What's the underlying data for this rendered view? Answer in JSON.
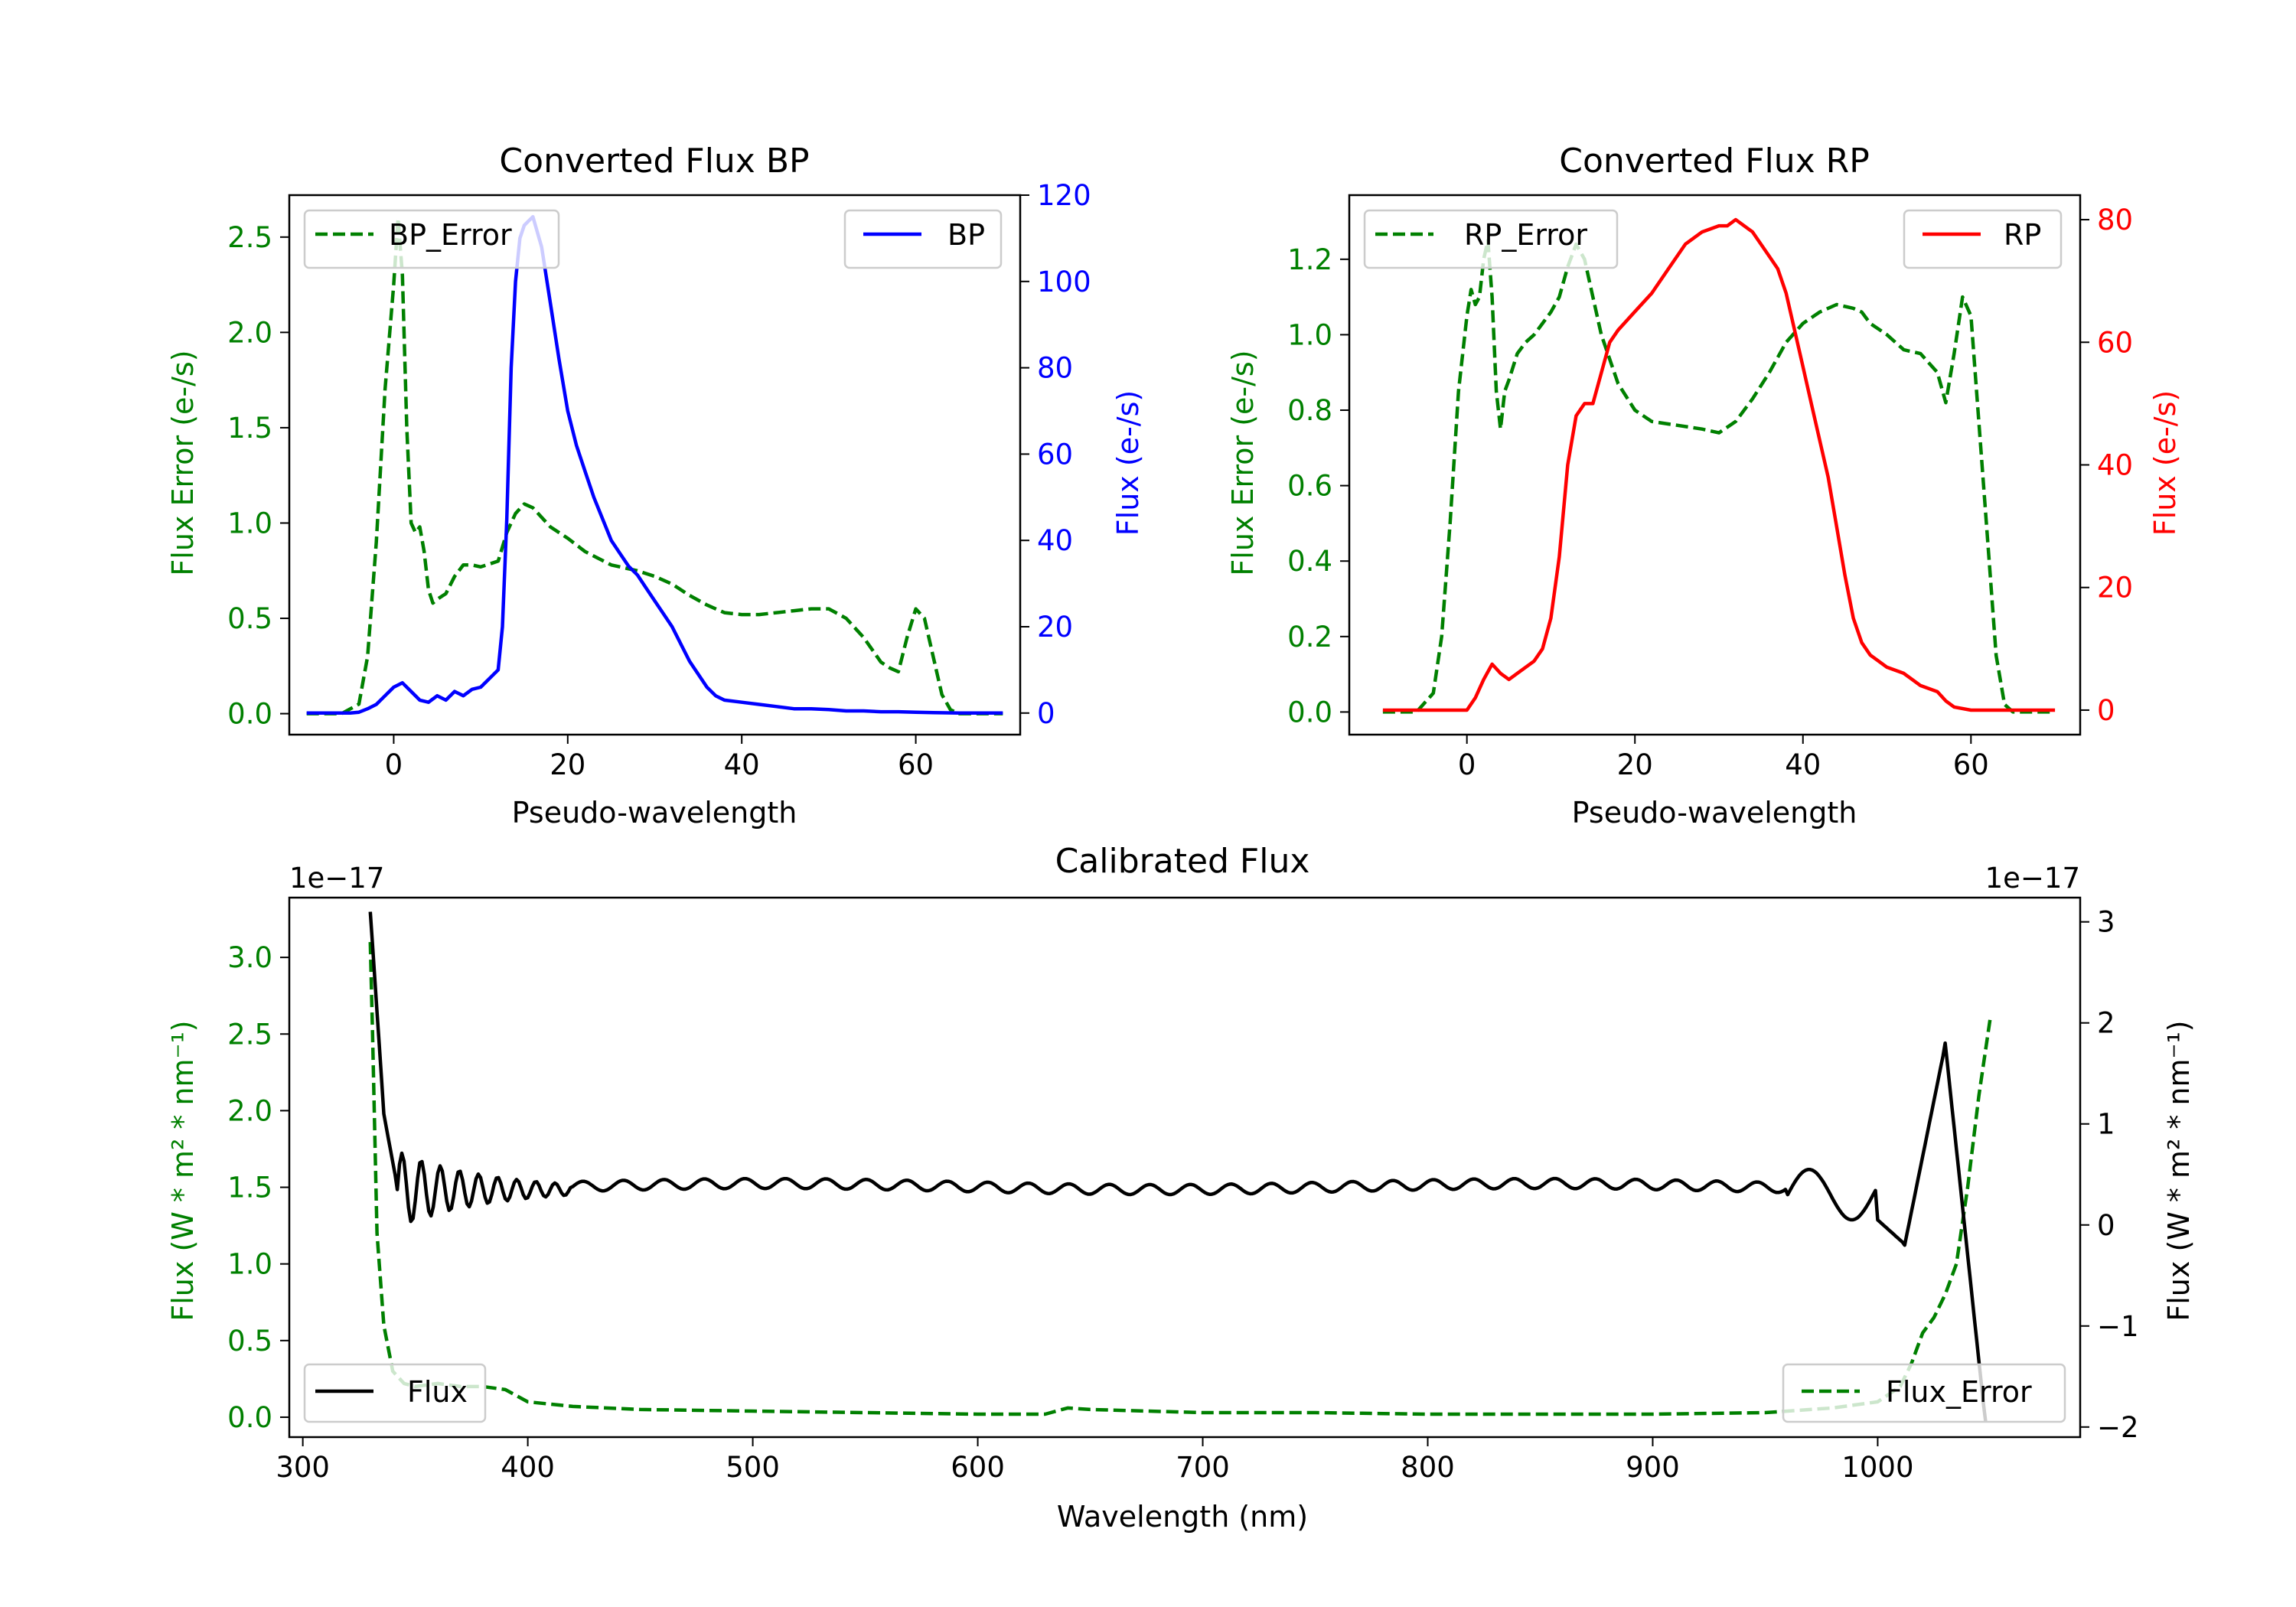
{
  "colors": {
    "green": "#008000",
    "blue": "#0000ff",
    "red": "#ff0000",
    "black": "#000000"
  },
  "chart_data": [
    {
      "id": "bp",
      "type": "line",
      "title": "Converted Flux BP",
      "xlabel": "Pseudo-wavelength",
      "ylabel_left": "Flux Error (e-/s)",
      "ylabel_right": "Flux (e-/s)",
      "xlim": [
        -12,
        72
      ],
      "ylim_left": [
        -0.11,
        2.72
      ],
      "ylim_right": [
        -5,
        120
      ],
      "xticks": [
        0,
        20,
        40,
        60
      ],
      "xtick_labels": [
        "0",
        "20",
        "40",
        "60"
      ],
      "yticks_left": [
        0,
        0.5,
        1,
        1.5,
        2,
        2.5
      ],
      "yticks_left_labels": [
        "0.0",
        "0.5",
        "1.0",
        "1.5",
        "2.0",
        "2.5"
      ],
      "yticks_right": [
        0,
        20,
        40,
        60,
        80,
        100,
        120
      ],
      "yticks_right_labels": [
        "0",
        "20",
        "40",
        "60",
        "80",
        "100",
        "120"
      ],
      "legend_left": {
        "label": "BP_Error",
        "position": "upper-left"
      },
      "legend_right": {
        "label": "BP",
        "position": "upper-right"
      },
      "series": [
        {
          "name": "BP_Error",
          "axis": "left",
          "style": "dashed",
          "color": "#008000",
          "x": [
            -10,
            -6,
            -4,
            -3,
            -2,
            -1,
            0,
            0.5,
            1,
            1.5,
            2,
            2.5,
            3,
            3.5,
            4,
            4.5,
            5,
            6,
            7,
            8,
            9,
            10,
            12,
            13,
            14,
            15,
            16,
            18,
            20,
            22,
            25,
            28,
            30,
            32,
            34,
            36,
            38,
            40,
            42,
            44,
            46,
            48,
            50,
            52,
            54,
            56,
            57,
            58,
            59,
            60,
            61,
            62,
            63,
            64,
            65,
            70
          ],
          "y": [
            0,
            0,
            0.05,
            0.3,
            0.9,
            1.7,
            2.25,
            2.6,
            2.3,
            1.5,
            1.0,
            0.95,
            0.98,
            0.85,
            0.65,
            0.58,
            0.6,
            0.63,
            0.72,
            0.78,
            0.78,
            0.77,
            0.8,
            0.95,
            1.05,
            1.1,
            1.08,
            0.98,
            0.92,
            0.85,
            0.78,
            0.75,
            0.72,
            0.68,
            0.62,
            0.57,
            0.53,
            0.52,
            0.52,
            0.53,
            0.54,
            0.55,
            0.55,
            0.5,
            0.4,
            0.27,
            0.24,
            0.22,
            0.4,
            0.55,
            0.5,
            0.3,
            0.1,
            0.02,
            0,
            0
          ]
        },
        {
          "name": "BP",
          "axis": "right",
          "style": "solid",
          "color": "#0000ff",
          "x": [
            -10,
            -6,
            -5,
            -4,
            -3,
            -2,
            -1,
            0,
            1,
            2,
            3,
            4,
            5,
            6,
            7,
            8,
            9,
            10,
            11,
            12,
            12.5,
            13,
            13.5,
            14,
            14.5,
            15,
            15.5,
            16,
            17,
            18,
            19,
            20,
            21,
            22,
            23,
            24,
            25,
            26,
            27,
            28,
            29,
            30,
            31,
            32,
            33,
            34,
            35,
            36,
            37,
            38,
            40,
            42,
            44,
            46,
            48,
            50,
            52,
            54,
            56,
            58,
            60,
            62,
            65,
            70
          ],
          "y": [
            0,
            0,
            0,
            0.2,
            1,
            2,
            4,
            6,
            7,
            5,
            3,
            2.5,
            4,
            3,
            5,
            4,
            5.5,
            6,
            8,
            10,
            20,
            45,
            80,
            100,
            110,
            113,
            114,
            115,
            108,
            95,
            82,
            70,
            62,
            56,
            50,
            45,
            40,
            37,
            34,
            32,
            29,
            26,
            23,
            20,
            16,
            12,
            9,
            6,
            4,
            3,
            2.5,
            2,
            1.5,
            1,
            1,
            0.8,
            0.5,
            0.5,
            0.3,
            0.3,
            0.2,
            0.1,
            0,
            0
          ]
        }
      ]
    },
    {
      "id": "rp",
      "type": "line",
      "title": "Converted Flux RP",
      "xlabel": "Pseudo-wavelength",
      "ylabel_left": "Flux Error (e-/s)",
      "ylabel_right": "Flux (e-/s)",
      "xlim": [
        -14,
        73
      ],
      "ylim_left": [
        -0.06,
        1.37
      ],
      "ylim_right": [
        -4,
        84
      ],
      "xticks": [
        0,
        20,
        40,
        60
      ],
      "xtick_labels": [
        "0",
        "20",
        "40",
        "60"
      ],
      "yticks_left": [
        0,
        0.2,
        0.4,
        0.6,
        0.8,
        1.0,
        1.2
      ],
      "yticks_left_labels": [
        "0.0",
        "0.2",
        "0.4",
        "0.6",
        "0.8",
        "1.0",
        "1.2"
      ],
      "yticks_right": [
        0,
        20,
        40,
        60,
        80
      ],
      "yticks_right_labels": [
        "0",
        "20",
        "40",
        "60",
        "80"
      ],
      "legend_left": {
        "label": "RP_Error",
        "position": "upper-left"
      },
      "legend_right": {
        "label": "RP",
        "position": "upper-right"
      },
      "series": [
        {
          "name": "RP_Error",
          "axis": "left",
          "style": "dashed",
          "color": "#008000",
          "x": [
            -10,
            -6,
            -4,
            -3,
            -2,
            -1,
            0,
            0.5,
            1,
            1.5,
            2,
            2.5,
            3,
            3.5,
            4,
            4.5,
            5,
            6,
            7,
            8,
            9,
            10,
            11,
            12,
            13,
            14,
            15,
            16,
            18,
            20,
            22,
            25,
            28,
            30,
            32,
            34,
            36,
            38,
            40,
            42,
            44,
            46,
            47,
            48,
            50,
            52,
            54,
            56,
            57,
            58,
            59,
            60,
            61,
            62,
            63,
            64,
            65,
            70
          ],
          "y": [
            0,
            0,
            0.05,
            0.2,
            0.5,
            0.85,
            1.05,
            1.12,
            1.08,
            1.1,
            1.2,
            1.25,
            1.1,
            0.85,
            0.75,
            0.85,
            0.88,
            0.95,
            0.98,
            1.0,
            1.03,
            1.06,
            1.1,
            1.18,
            1.24,
            1.2,
            1.1,
            1.0,
            0.87,
            0.8,
            0.77,
            0.76,
            0.75,
            0.74,
            0.77,
            0.83,
            0.9,
            0.98,
            1.03,
            1.06,
            1.08,
            1.07,
            1.06,
            1.03,
            1.0,
            0.96,
            0.95,
            0.9,
            0.82,
            0.95,
            1.1,
            1.05,
            0.75,
            0.45,
            0.15,
            0.02,
            0,
            0
          ]
        },
        {
          "name": "RP",
          "axis": "right",
          "style": "solid",
          "color": "#ff0000",
          "x": [
            -10,
            -4,
            -2,
            -1,
            0,
            1,
            2,
            3,
            4,
            5,
            6,
            7,
            8,
            9,
            10,
            11,
            12,
            13,
            14,
            15,
            16,
            17,
            18,
            20,
            22,
            24,
            26,
            28,
            30,
            31,
            32,
            33,
            34,
            35,
            36,
            37,
            38,
            39,
            40,
            41,
            42,
            43,
            44,
            45,
            46,
            47,
            48,
            49,
            50,
            52,
            54,
            56,
            57,
            58,
            60,
            62,
            65,
            70
          ],
          "y": [
            0,
            0,
            0,
            0,
            0,
            2,
            5,
            7.5,
            6,
            5,
            6,
            7,
            8,
            10,
            15,
            25,
            40,
            48,
            50,
            50,
            55,
            60,
            62,
            65,
            68,
            72,
            76,
            78,
            79,
            79,
            80,
            79,
            78,
            76,
            74,
            72,
            68,
            62,
            56,
            50,
            44,
            38,
            30,
            22,
            15,
            11,
            9,
            8,
            7,
            6,
            4,
            3,
            1.5,
            0.5,
            0,
            0,
            0,
            0
          ]
        }
      ]
    },
    {
      "id": "cal",
      "type": "line",
      "title": "Calibrated Flux",
      "xlabel": "Wavelength (nm)",
      "ylabel_left": "Flux (W * m² * nm⁻¹)",
      "ylabel_right": "Flux (W * m² * nm⁻¹)",
      "offset_left": "1e−17",
      "offset_right": "1e−17",
      "xlim": [
        294,
        1090
      ],
      "ylim_left": [
        -0.13,
        3.39
      ],
      "ylim_right": [
        -2.1,
        3.24
      ],
      "xticks": [
        300,
        400,
        500,
        600,
        700,
        800,
        900,
        1000
      ],
      "xtick_labels": [
        "300",
        "400",
        "500",
        "600",
        "700",
        "800",
        "900",
        "1000"
      ],
      "yticks_left": [
        0,
        0.5,
        1,
        1.5,
        2,
        2.5,
        3
      ],
      "yticks_left_labels": [
        "0.0",
        "0.5",
        "1.0",
        "1.5",
        "2.0",
        "2.5",
        "3.0"
      ],
      "yticks_right": [
        -2,
        -1,
        0,
        1,
        2,
        3
      ],
      "yticks_right_labels": [
        "−2",
        "−1",
        "0",
        "1",
        "2",
        "3"
      ],
      "legend_left": {
        "label": "Flux",
        "position": "lower-left"
      },
      "legend_right": {
        "label": "Flux_Error",
        "position": "lower-right"
      },
      "series": [
        {
          "name": "Flux_Error",
          "axis": "left",
          "style": "dashed",
          "color": "#008000",
          "x": [
            330,
            331,
            333,
            336,
            340,
            345,
            350,
            360,
            370,
            380,
            390,
            400,
            420,
            450,
            500,
            550,
            600,
            630,
            640,
            650,
            700,
            750,
            800,
            850,
            900,
            950,
            980,
            1000,
            1010,
            1015,
            1020,
            1025,
            1030,
            1035,
            1040,
            1045,
            1050
          ],
          "y": [
            3.1,
            2.5,
            1.2,
            0.6,
            0.3,
            0.22,
            0.2,
            0.22,
            0.2,
            0.2,
            0.18,
            0.1,
            0.07,
            0.05,
            0.04,
            0.03,
            0.02,
            0.02,
            0.06,
            0.05,
            0.03,
            0.03,
            0.02,
            0.02,
            0.02,
            0.03,
            0.06,
            0.1,
            0.2,
            0.35,
            0.55,
            0.65,
            0.8,
            1.0,
            1.5,
            2.1,
            2.6
          ]
        }
      ]
    }
  ]
}
